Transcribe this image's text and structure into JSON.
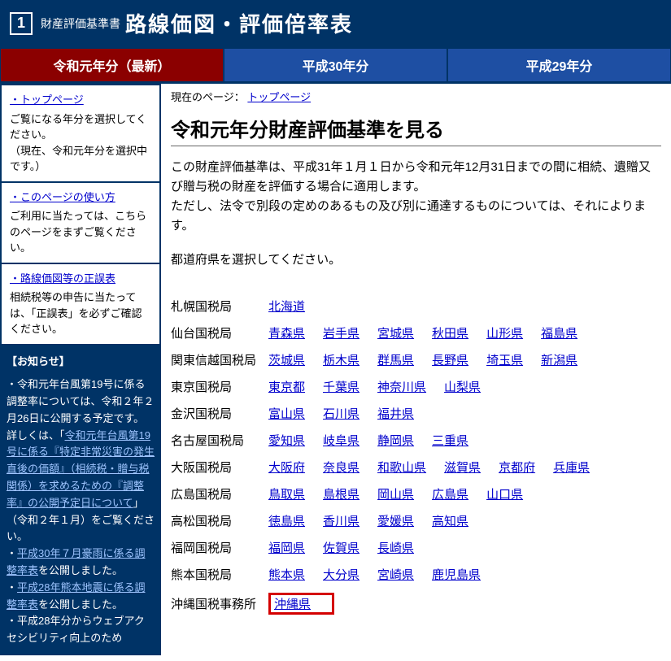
{
  "header": {
    "icon": "1",
    "sub": "財産評価基準書",
    "title": "路線価図・評価倍率表"
  },
  "tabs": [
    {
      "label": "令和元年分（最新）",
      "active": true
    },
    {
      "label": "平成30年分",
      "active": false
    },
    {
      "label": "平成29年分",
      "active": false
    }
  ],
  "sidebar": {
    "blocks": [
      {
        "link": "トップページ",
        "text": "ご覧になる年分を選択してください。\n（現在、令和元年分を選択中です。）"
      },
      {
        "link": "このページの使い方",
        "text": "ご利用に当たっては、こちらのページをまずご覧ください。"
      },
      {
        "link": "路線価図等の正誤表",
        "text": "相続税等の申告に当たっては、「正誤表」を必ずご確認ください。"
      }
    ],
    "notice": {
      "title": "【お知らせ】",
      "items": [
        {
          "prefix": "・令和元年台風第19号に係る調整率については、令和２年２月26日に公開する予定です。詳しくは、「",
          "link": "令和元年台風第19号に係る『特定非常災害の発生直後の価額』（相続税・贈与税関係）を求めるための『調整率』の公開予定日について",
          "suffix": "」（令和２年１月）をご覧ください。"
        },
        {
          "prefix": "・",
          "link": "平成30年７月豪雨に係る調整率表",
          "suffix": "を公開しました。"
        },
        {
          "prefix": "・",
          "link": "平成28年熊本地震に係る調整率表",
          "suffix": "を公開しました。"
        },
        {
          "prefix": "・平成28年分からウェブアクセシビリティ向上のため",
          "link": "",
          "suffix": ""
        }
      ]
    }
  },
  "main": {
    "breadcrumb_label": "現在のページ：",
    "breadcrumb_link": "トップページ",
    "title": "令和元年分財産評価基準を見る",
    "para1": "この財産評価基準は、平成31年１月１日から令和元年12月31日までの間に相続、遺贈又び贈与税の財産を評価する場合に適用します。\nただし、法令で別段の定めのあるもの及び別に通達するものについては、それによります。",
    "para2": "都道府県を選択してください。",
    "bureaus": [
      {
        "name": "札幌国税局",
        "prefs": [
          "北海道"
        ]
      },
      {
        "name": "仙台国税局",
        "prefs": [
          "青森県",
          "岩手県",
          "宮城県",
          "秋田県",
          "山形県",
          "福島県"
        ]
      },
      {
        "name": "関東信越国税局",
        "prefs": [
          "茨城県",
          "栃木県",
          "群馬県",
          "長野県",
          "埼玉県",
          "新潟県"
        ]
      },
      {
        "name": "東京国税局",
        "prefs": [
          "東京都",
          "千葉県",
          "神奈川県",
          "山梨県"
        ]
      },
      {
        "name": "金沢国税局",
        "prefs": [
          "富山県",
          "石川県",
          "福井県"
        ]
      },
      {
        "name": "名古屋国税局",
        "prefs": [
          "愛知県",
          "岐阜県",
          "静岡県",
          "三重県"
        ]
      },
      {
        "name": "大阪国税局",
        "prefs": [
          "大阪府",
          "奈良県",
          "和歌山県",
          "滋賀県",
          "京都府",
          "兵庫県"
        ]
      },
      {
        "name": "広島国税局",
        "prefs": [
          "鳥取県",
          "島根県",
          "岡山県",
          "広島県",
          "山口県"
        ]
      },
      {
        "name": "高松国税局",
        "prefs": [
          "徳島県",
          "香川県",
          "愛媛県",
          "高知県"
        ]
      },
      {
        "name": "福岡国税局",
        "prefs": [
          "福岡県",
          "佐賀県",
          "長崎県"
        ]
      },
      {
        "name": "熊本国税局",
        "prefs": [
          "熊本県",
          "大分県",
          "宮崎県",
          "鹿児島県"
        ]
      },
      {
        "name": "沖縄国税事務所",
        "prefs": [
          "沖縄県"
        ],
        "highlight": 0
      }
    ]
  }
}
